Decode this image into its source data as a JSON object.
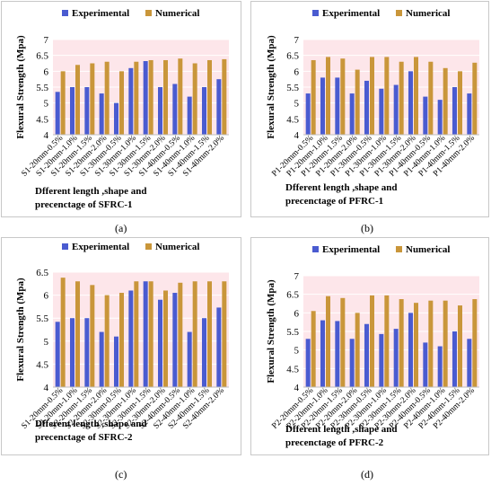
{
  "colors": {
    "experimental": "#4a5bd0",
    "numerical": "#c9963a",
    "plot_bg": "#fde6ea",
    "grid": "#ffffff"
  },
  "panel_labels": [
    "(a)",
    "(b)",
    "(c)",
    "(d)"
  ],
  "chart_data": [
    {
      "type": "bar",
      "legend": [
        "Experimental",
        "Numerical"
      ],
      "ylabel": "Flexural  Strength  (Mpa)",
      "xlabel_lines": [
        "Dfferent length ,shape and",
        "precenctage of SFRC-1"
      ],
      "ylim": [
        4,
        7
      ],
      "yticks": [
        "4",
        "4.5",
        "5",
        "5.5",
        "6",
        "6.5",
        "7"
      ],
      "categories": [
        "S1-20mm-0.5%",
        "S1-20mm-1.0%",
        "S1-20mm-1.5%",
        "S1-20mm-2.0%",
        "S1-30mm-0.5%",
        "S1-30mm-1.0%",
        "S1-30mm-1.5%",
        "S1-30mm-2.0%",
        "S1-40mm-0.5%",
        "S1-40mm-1.0%",
        "S1-40mm-1.5%",
        "S1-40mm-2.0%"
      ],
      "series": [
        {
          "name": "Experimental",
          "values": [
            5.35,
            5.5,
            5.5,
            5.3,
            5.0,
            6.1,
            6.32,
            5.5,
            5.6,
            5.2,
            5.5,
            5.75
          ]
        },
        {
          "name": "Numerical",
          "values": [
            6.0,
            6.2,
            6.25,
            6.3,
            6.0,
            6.3,
            6.35,
            6.35,
            6.4,
            6.25,
            6.35,
            6.38
          ]
        }
      ]
    },
    {
      "type": "bar",
      "legend": [
        "Experimental",
        "Numerical"
      ],
      "ylabel": "Flexural  Strength  (Mpa)",
      "xlabel_lines": [
        "Dfferent length ,shape and",
        "precenctage of PFRC-1"
      ],
      "ylim": [
        4,
        7
      ],
      "yticks": [
        "4",
        "4.5",
        "5",
        "5.5",
        "6",
        "6.5",
        "7"
      ],
      "categories": [
        "P1-20mm-0.5%",
        "P1-20mm-1.0%",
        "P1-20mm-1.5%",
        "P1-20mm-2.0%",
        "P1-30mm-0.5%",
        "P1-30mm-1.0%",
        "P1-30mm-1.5%",
        "P1-30mm-2.0%",
        "P1-40mm-0.5%",
        "P1-40mm-1.0%",
        "P1-40mm-1.5%",
        "P1-40mm-2.0%"
      ],
      "series": [
        {
          "name": "Experimental",
          "values": [
            5.3,
            5.8,
            5.8,
            5.3,
            5.7,
            5.45,
            5.57,
            6.0,
            5.2,
            5.1,
            5.5,
            5.3
          ]
        },
        {
          "name": "Numerical",
          "values": [
            6.35,
            6.45,
            6.4,
            6.05,
            6.45,
            6.45,
            6.3,
            6.45,
            6.3,
            6.1,
            6.0,
            6.27
          ]
        }
      ]
    },
    {
      "type": "bar",
      "legend": [
        "Experimental",
        "Numerical"
      ],
      "ylabel": "Flexural  Strength  (Mpa)",
      "xlabel_lines": [
        "Dfferent length ,shape and",
        "precenctage of SFRC-2"
      ],
      "ylim": [
        4,
        6.5
      ],
      "yticks": [
        "4",
        "4.5",
        "5",
        "5.5",
        "6",
        "6.5"
      ],
      "categories": [
        "S1-20mm-0.5%",
        "S2-20mm-1.0%",
        "S2-20mm-1.5%",
        "S2-20mm-2.0%",
        "S2-30mm-0.5%",
        "S2-30mm-1.0%",
        "S2-30mm-1.5%",
        "S2-30mm-2.0%",
        "S2-40mm-0.5%",
        "S2-40mm-1.0%",
        "S2-40mm-1.5%",
        "S2-40mm-2.0%"
      ],
      "series": [
        {
          "name": "Experimental",
          "values": [
            5.42,
            5.5,
            5.5,
            5.2,
            5.1,
            6.1,
            6.3,
            5.9,
            6.05,
            5.2,
            5.5,
            5.73
          ]
        },
        {
          "name": "Numerical",
          "values": [
            6.38,
            6.3,
            6.22,
            6.0,
            6.05,
            6.3,
            6.3,
            6.1,
            6.27,
            6.3,
            6.3,
            6.3
          ]
        }
      ]
    },
    {
      "type": "bar",
      "legend": [
        "Experimental",
        "Numerical"
      ],
      "ylabel": "Flexural  Strength  (Mpa)",
      "xlabel_lines": [
        "Dfferent length ,shape and",
        "precenctage of PFRC-2"
      ],
      "ylim": [
        4,
        7
      ],
      "yticks": [
        "4",
        "4.5",
        "5",
        "5.5",
        "6",
        "6.5",
        "7"
      ],
      "categories": [
        "P2-20mm-0.5%",
        "P2-20mm-1.0%",
        "P2-20mm-1.5%",
        "P2-20mm-2.0%",
        "P2-30mm-0.5%",
        "P2-30mm-1.0%",
        "P2-30mm-1.5%",
        "P2-30mm-2.0%",
        "P2-40mm-0.5%",
        "P2-40mm-1.0%",
        "P2-40mm-1.5%",
        "P2-40mm-2.0%"
      ],
      "series": [
        {
          "name": "Experimental",
          "values": [
            5.3,
            5.8,
            5.78,
            5.3,
            5.7,
            5.43,
            5.57,
            6.0,
            5.2,
            5.1,
            5.5,
            5.3
          ]
        },
        {
          "name": "Numerical",
          "values": [
            6.05,
            6.45,
            6.4,
            6.0,
            6.47,
            6.47,
            6.37,
            6.27,
            6.33,
            6.33,
            6.2,
            6.37
          ]
        }
      ]
    }
  ]
}
